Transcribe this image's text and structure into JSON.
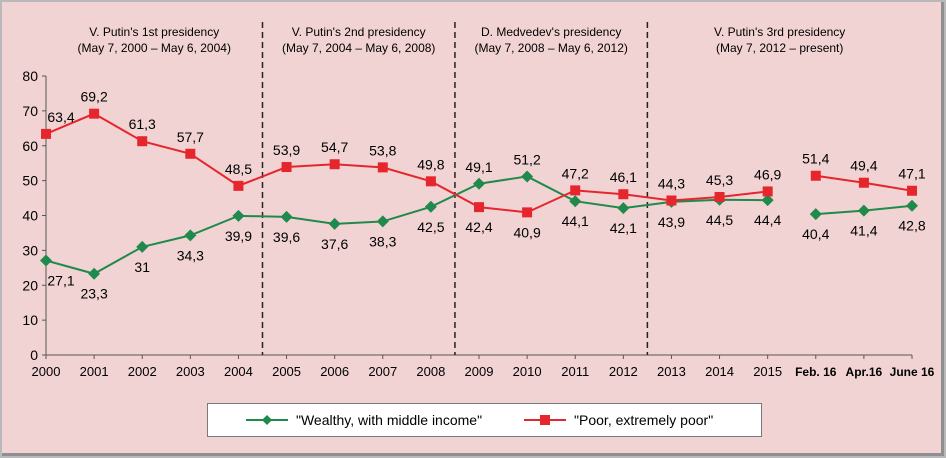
{
  "chart_data": {
    "type": "line",
    "categories": [
      "2000",
      "2001",
      "2002",
      "2003",
      "2004",
      "2005",
      "2006",
      "2007",
      "2008",
      "2009",
      "2010",
      "2011",
      "2012",
      "2013",
      "2014",
      "2015",
      "Feb. 16",
      "Apr.16",
      "June 16"
    ],
    "ylim": [
      0,
      80
    ],
    "yticks": [
      0,
      10,
      20,
      30,
      40,
      50,
      60,
      70,
      80
    ],
    "grid": false,
    "legend_position": "bottom",
    "series": [
      {
        "name": "\"Wealthy, with middle income\"",
        "color": "#1f8a4c",
        "marker": "diamond",
        "values": [
          27.1,
          23.3,
          31,
          34.3,
          39.9,
          39.6,
          37.6,
          38.3,
          42.5,
          49.1,
          51.2,
          44.1,
          42.1,
          43.9,
          44.5,
          44.4,
          40.4,
          41.4,
          42.8
        ],
        "labels": [
          "27,1",
          "23,3",
          "31",
          "34,3",
          "39,9",
          "39,6",
          "37,6",
          "38,3",
          "42,5",
          "49,1",
          "51,2",
          "44,1",
          "42,1",
          "43,9",
          "44,5",
          "44,4",
          "40,4",
          "41,4",
          "42,8"
        ]
      },
      {
        "name": "\"Poor, extremely poor\"",
        "color": "#e5262d",
        "marker": "square",
        "values": [
          63.4,
          69.2,
          61.3,
          57.7,
          48.5,
          53.9,
          54.7,
          53.8,
          49.8,
          42.4,
          40.9,
          47.2,
          46.1,
          44.3,
          45.3,
          46.9,
          51.4,
          49.4,
          47.1
        ],
        "labels": [
          "63,4",
          "69,2",
          "61,3",
          "57,7",
          "48,5",
          "53,9",
          "54,7",
          "53,8",
          "49,8",
          "42,4",
          "40,9",
          "47,2",
          "46,1",
          "44,3",
          "45,3",
          "46,9",
          "51,4",
          "49,4",
          "47,1"
        ]
      }
    ],
    "series_break_after": "2015",
    "periods": [
      {
        "title": "V. Putin's 1st presidency",
        "subtitle": "(May 7, 2000 – May 6, 2004)"
      },
      {
        "title": "V. Putin's 2nd presidency",
        "subtitle": "(May 7, 2004 – May 6, 2008)"
      },
      {
        "title": "D. Medvedev's presidency",
        "subtitle": "(May 7, 2008 –  May 6, 2012)"
      },
      {
        "title": "V. Putin's 3rd presidency",
        "subtitle": "(May 7, 2012 – present)"
      }
    ],
    "period_dividers_between": [
      [
        "2004",
        "2005"
      ],
      [
        "2008",
        "2009"
      ],
      [
        "2012",
        "2013"
      ]
    ]
  }
}
